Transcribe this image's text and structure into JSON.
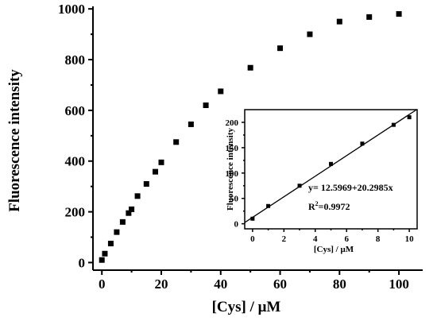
{
  "chart_data": [
    {
      "type": "scatter",
      "title": "",
      "xlabel": "[Cys] / μM",
      "ylabel": "Fluorescence intensity",
      "xlim": [
        -3,
        108
      ],
      "ylim": [
        -30,
        1010
      ],
      "xticks": [
        0,
        20,
        40,
        60,
        80,
        100
      ],
      "yticks": [
        0,
        200,
        400,
        600,
        800,
        1000
      ],
      "grid": false,
      "marker": "square",
      "color": "#000000",
      "points": [
        {
          "x": 0,
          "y": 10
        },
        {
          "x": 1,
          "y": 35
        },
        {
          "x": 3,
          "y": 75
        },
        {
          "x": 5,
          "y": 120
        },
        {
          "x": 7,
          "y": 160
        },
        {
          "x": 9,
          "y": 195
        },
        {
          "x": 10,
          "y": 210
        },
        {
          "x": 12,
          "y": 262
        },
        {
          "x": 15,
          "y": 310
        },
        {
          "x": 18,
          "y": 358
        },
        {
          "x": 20,
          "y": 395
        },
        {
          "x": 25,
          "y": 475
        },
        {
          "x": 30,
          "y": 545
        },
        {
          "x": 35,
          "y": 620
        },
        {
          "x": 40,
          "y": 675
        },
        {
          "x": 50,
          "y": 768
        },
        {
          "x": 60,
          "y": 845
        },
        {
          "x": 70,
          "y": 900
        },
        {
          "x": 80,
          "y": 950
        },
        {
          "x": 90,
          "y": 968
        },
        {
          "x": 100,
          "y": 980
        }
      ]
    },
    {
      "type": "scatter",
      "title": "",
      "inset": true,
      "xlabel": "[Cys] / μM",
      "ylabel": "Fluorescence intensity",
      "xlim": [
        -0.5,
        10.5
      ],
      "ylim": [
        -10,
        225
      ],
      "xticks": [
        0,
        2,
        4,
        6,
        8,
        10
      ],
      "yticks": [
        0,
        50,
        100,
        150,
        200
      ],
      "grid": false,
      "marker": "square",
      "color": "#000000",
      "points": [
        {
          "x": 0,
          "y": 10
        },
        {
          "x": 1,
          "y": 35
        },
        {
          "x": 3,
          "y": 75
        },
        {
          "x": 5,
          "y": 118
        },
        {
          "x": 7,
          "y": 158
        },
        {
          "x": 9,
          "y": 195
        },
        {
          "x": 10,
          "y": 210
        }
      ],
      "fit": {
        "intercept": 12.5969,
        "slope": 20.2985,
        "equation": "y= 12.5969+20.2985x",
        "r2_prefix": "R",
        "r2_exponent": "2",
        "r2_value": "=0.9972"
      }
    }
  ]
}
